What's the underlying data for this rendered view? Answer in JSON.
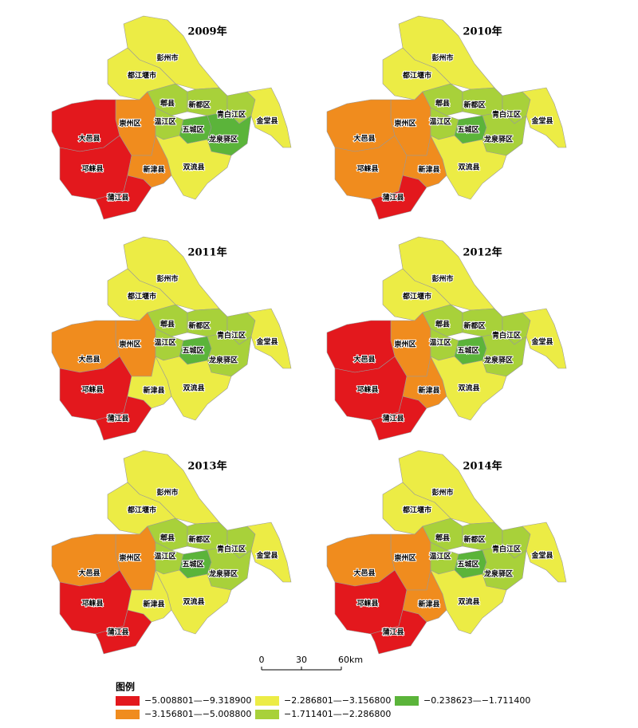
{
  "maps": [
    {
      "title": "2009年",
      "districts": [
        {
          "name": "彭州市",
          "color": "#ecec45"
        },
        {
          "name": "都江堰市",
          "color": "#ecec45"
        },
        {
          "name": "崇州区",
          "color": "#f08c1e"
        },
        {
          "name": "大邑县",
          "color": "#e3181d"
        },
        {
          "name": "邛崃县",
          "color": "#e3181d"
        },
        {
          "name": "蒲江县",
          "color": "#e3181d"
        },
        {
          "name": "新津县",
          "color": "#f08c1e"
        },
        {
          "name": "郫县",
          "color": "#a8d13a"
        },
        {
          "name": "温江区",
          "color": "#a8d13a"
        },
        {
          "name": "新都区",
          "color": "#a8d13a"
        },
        {
          "name": "青白江区",
          "color": "#a8d13a"
        },
        {
          "name": "五城区",
          "color": "#5bb43a"
        },
        {
          "name": "龙泉驿区",
          "color": "#5bb43a"
        },
        {
          "name": "金堂县",
          "color": "#ecec45"
        },
        {
          "name": "双流县",
          "color": "#ecec45"
        }
      ]
    },
    {
      "title": "2010年",
      "districts": [
        {
          "name": "彭州市",
          "color": "#ecec45"
        },
        {
          "name": "都江堰市",
          "color": "#ecec45"
        },
        {
          "name": "崇州区",
          "color": "#f08c1e"
        },
        {
          "name": "大邑县",
          "color": "#f08c1e"
        },
        {
          "name": "邛崃县",
          "color": "#f08c1e"
        },
        {
          "name": "蒲江县",
          "color": "#e3181d"
        },
        {
          "name": "新津县",
          "color": "#f08c1e"
        },
        {
          "name": "郫县",
          "color": "#a8d13a"
        },
        {
          "name": "温江区",
          "color": "#a8d13a"
        },
        {
          "name": "新都区",
          "color": "#a8d13a"
        },
        {
          "name": "青白江区",
          "color": "#a8d13a"
        },
        {
          "name": "五城区",
          "color": "#5bb43a"
        },
        {
          "name": "龙泉驿区",
          "color": "#a8d13a"
        },
        {
          "name": "金堂县",
          "color": "#ecec45"
        },
        {
          "name": "双流县",
          "color": "#ecec45"
        }
      ]
    },
    {
      "title": "2011年",
      "districts": [
        {
          "name": "彭州市",
          "color": "#ecec45"
        },
        {
          "name": "都江堰市",
          "color": "#ecec45"
        },
        {
          "name": "崇州区",
          "color": "#f08c1e"
        },
        {
          "name": "大邑县",
          "color": "#f08c1e"
        },
        {
          "name": "邛崃县",
          "color": "#e3181d"
        },
        {
          "name": "蒲江县",
          "color": "#e3181d"
        },
        {
          "name": "新津县",
          "color": "#ecec45"
        },
        {
          "name": "郫县",
          "color": "#a8d13a"
        },
        {
          "name": "温江区",
          "color": "#a8d13a"
        },
        {
          "name": "新都区",
          "color": "#a8d13a"
        },
        {
          "name": "青白江区",
          "color": "#a8d13a"
        },
        {
          "name": "五城区",
          "color": "#5bb43a"
        },
        {
          "name": "龙泉驿区",
          "color": "#a8d13a"
        },
        {
          "name": "金堂县",
          "color": "#ecec45"
        },
        {
          "name": "双流县",
          "color": "#ecec45"
        }
      ]
    },
    {
      "title": "2012年",
      "districts": [
        {
          "name": "彭州市",
          "color": "#ecec45"
        },
        {
          "name": "都江堰市",
          "color": "#ecec45"
        },
        {
          "name": "崇州区",
          "color": "#f08c1e"
        },
        {
          "name": "大邑县",
          "color": "#e3181d"
        },
        {
          "name": "邛崃县",
          "color": "#e3181d"
        },
        {
          "name": "蒲江县",
          "color": "#e3181d"
        },
        {
          "name": "新津县",
          "color": "#f08c1e"
        },
        {
          "name": "郫县",
          "color": "#a8d13a"
        },
        {
          "name": "温江区",
          "color": "#a8d13a"
        },
        {
          "name": "新都区",
          "color": "#a8d13a"
        },
        {
          "name": "青白江区",
          "color": "#a8d13a"
        },
        {
          "name": "五城区",
          "color": "#5bb43a"
        },
        {
          "name": "龙泉驿区",
          "color": "#a8d13a"
        },
        {
          "name": "金堂县",
          "color": "#ecec45"
        },
        {
          "name": "双流县",
          "color": "#ecec45"
        }
      ]
    },
    {
      "title": "2013年",
      "districts": [
        {
          "name": "彭州市",
          "color": "#ecec45"
        },
        {
          "name": "都江堰市",
          "color": "#ecec45"
        },
        {
          "name": "崇州区",
          "color": "#f08c1e"
        },
        {
          "name": "大邑县",
          "color": "#f08c1e"
        },
        {
          "name": "邛崃县",
          "color": "#e3181d"
        },
        {
          "name": "蒲江县",
          "color": "#e3181d"
        },
        {
          "name": "新津县",
          "color": "#ecec45"
        },
        {
          "name": "郫县",
          "color": "#a8d13a"
        },
        {
          "name": "温江区",
          "color": "#a8d13a"
        },
        {
          "name": "新都区",
          "color": "#a8d13a"
        },
        {
          "name": "青白江区",
          "color": "#a8d13a"
        },
        {
          "name": "五城区",
          "color": "#5bb43a"
        },
        {
          "name": "龙泉驿区",
          "color": "#a8d13a"
        },
        {
          "name": "金堂县",
          "color": "#ecec45"
        },
        {
          "name": "双流县",
          "color": "#ecec45"
        }
      ]
    },
    {
      "title": "2014年",
      "districts": [
        {
          "name": "彭州市",
          "color": "#ecec45"
        },
        {
          "name": "都江堰市",
          "color": "#ecec45"
        },
        {
          "name": "崇州区",
          "color": "#f08c1e"
        },
        {
          "name": "大邑县",
          "color": "#f08c1e"
        },
        {
          "name": "邛崃县",
          "color": "#e3181d"
        },
        {
          "name": "蒲江县",
          "color": "#e3181d"
        },
        {
          "name": "新津县",
          "color": "#f08c1e"
        },
        {
          "name": "郫县",
          "color": "#a8d13a"
        },
        {
          "name": "温江区",
          "color": "#a8d13a"
        },
        {
          "name": "新都区",
          "color": "#a8d13a"
        },
        {
          "name": "青白江区",
          "color": "#a8d13a"
        },
        {
          "name": "五城区",
          "color": "#5bb43a"
        },
        {
          "name": "龙泉驿区",
          "color": "#a8d13a"
        },
        {
          "name": "金堂县",
          "color": "#ecec45"
        },
        {
          "name": "双流县",
          "color": "#ecec45"
        }
      ]
    }
  ],
  "scale_bar": {
    "labels": [
      "0",
      "30",
      "60km"
    ]
  },
  "legend": {
    "title": "图例",
    "entries": [
      {
        "label": "−5.008801—−9.318900",
        "color": "#e3181d"
      },
      {
        "label": "−3.156801—−5.008800",
        "color": "#f08c1e"
      },
      {
        "label": "−2.286801—−3.156800",
        "color": "#ecec45"
      },
      {
        "label": "−1.711401—−2.286800",
        "color": "#a8d13a"
      },
      {
        "label": "−0.238623—−1.711400",
        "color": "#5bb43a"
      }
    ]
  }
}
